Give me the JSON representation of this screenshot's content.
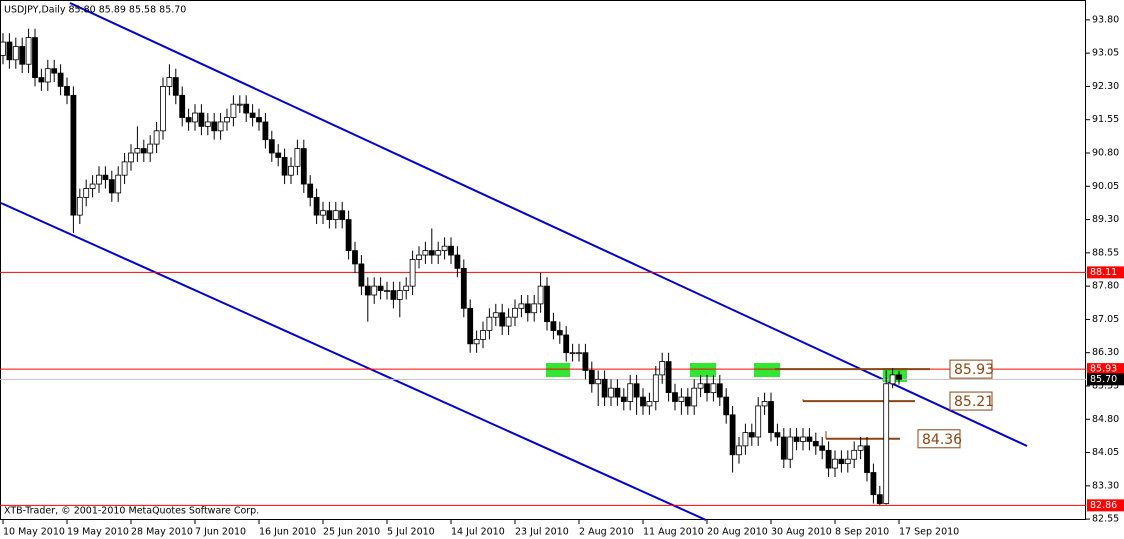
{
  "chart_data": {
    "type": "candlestick",
    "title": "USDJPY,Daily  85.80 85.89 85.58 85.70",
    "footer": "XTB-Trader, © 2001-2010 MetaQuotes Software Corp.",
    "categories": [
      "10 May 2010",
      null,
      null,
      null,
      null,
      null,
      null,
      null,
      null,
      null,
      "19 May 2010",
      null,
      null,
      null,
      null,
      null,
      null,
      null,
      null,
      null,
      "28 May 2010",
      null,
      null,
      null,
      null,
      null,
      null,
      null,
      null,
      null,
      "7 Jun 2010",
      null,
      null,
      null,
      null,
      null,
      null,
      null,
      null,
      null,
      "16 Jun 2010",
      null,
      null,
      null,
      null,
      null,
      null,
      null,
      null,
      null,
      "25 Jun 2010",
      null,
      null,
      null,
      null,
      null,
      null,
      null,
      null,
      null,
      "5 Jul 2010",
      null,
      null,
      null,
      null,
      null,
      null,
      null,
      null,
      null,
      "14 Jul 2010",
      null,
      null,
      null,
      null,
      null,
      null,
      null,
      null,
      null,
      "23 Jul 2010",
      null,
      null,
      null,
      null,
      null,
      null,
      null,
      null,
      null,
      "2 Aug 2010",
      null,
      null,
      null,
      null,
      null,
      null,
      null,
      null,
      null,
      "11 Aug 2010",
      null,
      null,
      null,
      null,
      null,
      null,
      null,
      null,
      null,
      "20 Aug 2010",
      null,
      null,
      null,
      null,
      null,
      null,
      null,
      null,
      null,
      "30 Aug 2010",
      null,
      null,
      null,
      null,
      null,
      null,
      null,
      null,
      null,
      "8 Sep 2010",
      null,
      null,
      null,
      null,
      null,
      null,
      null,
      null,
      null,
      "17 Sep 2010"
    ],
    "open": [
      93.0,
      93.3,
      92.9,
      93.2,
      92.8,
      93.4,
      92.5,
      92.4,
      92.7,
      92.6,
      92.3,
      92.1,
      89.4,
      89.8,
      90.0,
      90.1,
      90.3,
      90.2,
      89.9,
      90.3,
      90.6,
      90.8,
      90.9,
      90.8,
      91.0,
      91.3,
      92.3,
      92.5,
      92.1,
      91.6,
      91.5,
      91.7,
      91.4,
      91.5,
      91.3,
      91.5,
      91.6,
      91.9,
      91.9,
      91.7,
      91.6,
      91.5,
      91.1,
      90.8,
      90.7,
      90.3,
      90.5,
      90.9,
      90.1,
      89.8,
      89.4,
      89.5,
      89.3,
      89.5,
      89.3,
      88.6,
      88.3,
      87.8,
      87.6,
      87.8,
      87.7,
      87.7,
      87.5,
      87.7,
      87.8,
      88.4,
      88.5,
      88.6,
      88.5,
      88.6,
      88.7,
      88.5,
      88.2,
      87.3,
      86.5,
      86.6,
      86.8,
      87.1,
      87.2,
      86.9,
      87.1,
      87.3,
      87.4,
      87.2,
      87.4,
      87.8,
      87.0,
      86.8,
      86.7,
      86.3,
      86.3,
      86.3,
      85.9,
      85.6,
      85.7,
      85.3,
      85.5,
      85.3,
      85.2,
      85.6,
      85.3,
      85.1,
      85.2,
      85.8,
      86.1,
      85.4,
      85.2,
      85.3,
      85.1,
      85.5,
      85.6,
      85.4,
      85.6,
      85.3,
      84.9,
      84.0,
      84.2,
      84.5,
      84.4,
      85.1,
      85.2,
      84.5,
      84.4,
      83.9,
      84.4,
      84.3,
      84.4,
      84.3,
      84.2,
      84.1,
      83.7,
      83.9,
      83.8,
      83.9,
      84.1,
      84.2,
      83.6,
      83.1,
      82.9,
      85.6,
      85.8
    ],
    "high": [
      93.5,
      93.5,
      93.4,
      93.4,
      93.6,
      93.6,
      92.7,
      92.9,
      92.9,
      92.8,
      92.5,
      92.3,
      90.0,
      90.2,
      90.3,
      90.5,
      90.5,
      90.4,
      90.5,
      90.8,
      91.0,
      91.4,
      91.1,
      91.2,
      91.5,
      92.5,
      92.8,
      92.7,
      92.3,
      91.8,
      91.9,
      91.9,
      91.7,
      91.7,
      91.7,
      91.8,
      92.1,
      92.1,
      92.1,
      91.9,
      91.8,
      91.7,
      91.3,
      91.0,
      90.9,
      90.7,
      91.1,
      91.1,
      90.3,
      90.0,
      89.7,
      89.7,
      89.7,
      89.7,
      89.5,
      88.8,
      88.5,
      88.0,
      88.0,
      88.0,
      87.9,
      87.9,
      87.9,
      88.0,
      88.6,
      88.7,
      88.8,
      89.1,
      88.8,
      88.9,
      88.9,
      88.7,
      88.4,
      87.5,
      86.8,
      87.0,
      87.3,
      87.4,
      87.4,
      87.3,
      87.5,
      87.6,
      87.6,
      87.6,
      88.1,
      88.0,
      87.2,
      87.0,
      86.9,
      86.5,
      86.5,
      86.5,
      86.1,
      85.9,
      85.9,
      85.7,
      85.7,
      85.5,
      85.8,
      85.8,
      85.5,
      85.4,
      86.0,
      86.3,
      86.3,
      85.6,
      85.5,
      85.5,
      85.7,
      85.8,
      85.8,
      85.8,
      85.8,
      85.5,
      85.1,
      84.4,
      84.7,
      84.7,
      85.3,
      85.4,
      85.4,
      84.7,
      84.6,
      84.6,
      84.6,
      84.6,
      84.6,
      84.5,
      84.4,
      84.3,
      84.1,
      84.1,
      84.1,
      84.3,
      84.4,
      84.4,
      83.8,
      83.3,
      85.9,
      85.95,
      85.89
    ],
    "low": [
      92.8,
      92.7,
      92.7,
      92.6,
      92.6,
      92.3,
      92.2,
      92.2,
      92.4,
      92.1,
      91.9,
      89.0,
      89.2,
      89.6,
      89.8,
      89.9,
      90.0,
      89.7,
      89.7,
      90.1,
      90.4,
      90.6,
      90.6,
      90.6,
      90.8,
      91.1,
      92.1,
      91.9,
      91.4,
      91.3,
      91.3,
      91.2,
      91.2,
      91.1,
      91.1,
      91.3,
      91.4,
      91.7,
      91.5,
      91.4,
      91.3,
      90.9,
      90.6,
      90.5,
      90.1,
      90.1,
      90.3,
      89.9,
      89.6,
      89.2,
      89.2,
      89.1,
      89.1,
      89.1,
      88.4,
      88.1,
      87.6,
      87.0,
      87.4,
      87.5,
      87.5,
      87.3,
      87.1,
      87.5,
      87.6,
      88.2,
      88.3,
      88.3,
      88.3,
      88.4,
      88.3,
      88.0,
      87.1,
      86.3,
      86.3,
      86.4,
      86.6,
      86.9,
      86.7,
      86.7,
      86.9,
      87.1,
      87.0,
      87.0,
      87.2,
      86.8,
      86.6,
      86.5,
      86.1,
      86.1,
      86.1,
      85.7,
      85.4,
      85.1,
      85.1,
      85.1,
      85.1,
      85.0,
      85.0,
      84.9,
      84.9,
      84.9,
      85.0,
      85.6,
      85.2,
      85.0,
      84.9,
      84.9,
      84.9,
      85.3,
      85.2,
      85.2,
      85.1,
      84.7,
      83.6,
      83.8,
      84.0,
      84.2,
      84.2,
      84.9,
      84.3,
      84.2,
      83.7,
      83.7,
      84.1,
      84.1,
      84.1,
      84.0,
      83.9,
      83.5,
      83.5,
      83.6,
      83.6,
      83.7,
      83.9,
      83.4,
      82.9,
      82.86,
      82.88,
      85.5,
      85.58
    ],
    "close": [
      93.3,
      92.9,
      93.2,
      92.8,
      93.4,
      92.5,
      92.4,
      92.7,
      92.6,
      92.3,
      92.1,
      89.4,
      89.8,
      90.0,
      90.1,
      90.3,
      90.2,
      89.9,
      90.3,
      90.6,
      90.8,
      90.9,
      90.8,
      91.0,
      91.3,
      92.3,
      92.5,
      92.1,
      91.6,
      91.5,
      91.7,
      91.4,
      91.5,
      91.3,
      91.5,
      91.6,
      91.9,
      91.9,
      91.7,
      91.6,
      91.5,
      91.1,
      90.8,
      90.7,
      90.3,
      90.5,
      90.9,
      90.1,
      89.8,
      89.4,
      89.5,
      89.3,
      89.5,
      89.3,
      88.6,
      88.3,
      87.8,
      87.6,
      87.8,
      87.7,
      87.7,
      87.5,
      87.7,
      87.8,
      88.4,
      88.5,
      88.6,
      88.5,
      88.6,
      88.7,
      88.5,
      88.2,
      87.3,
      86.5,
      86.6,
      86.8,
      87.1,
      87.2,
      86.9,
      87.1,
      87.3,
      87.4,
      87.2,
      87.4,
      87.8,
      87.0,
      86.8,
      86.7,
      86.3,
      86.3,
      86.3,
      85.9,
      85.6,
      85.7,
      85.3,
      85.5,
      85.3,
      85.2,
      85.6,
      85.3,
      85.1,
      85.2,
      85.8,
      86.1,
      85.4,
      85.2,
      85.3,
      85.1,
      85.5,
      85.6,
      85.4,
      85.6,
      85.3,
      84.9,
      84.0,
      84.2,
      84.5,
      84.4,
      85.1,
      85.2,
      84.5,
      84.4,
      83.9,
      84.4,
      84.3,
      84.4,
      84.3,
      84.2,
      84.1,
      83.7,
      83.9,
      83.8,
      83.9,
      84.1,
      84.2,
      83.6,
      83.1,
      82.9,
      85.6,
      85.8,
      85.7
    ],
    "ylim": [
      82.53,
      94.18
    ],
    "yticks": [
      {
        "value": 93.8,
        "label": "93.80"
      },
      93.05,
      {
        "value": 92.3,
        "label": "92.30"
      },
      91.55,
      {
        "value": 90.8,
        "label": "90.80"
      },
      90.05,
      {
        "value": 89.3,
        "label": "89.30"
      },
      88.55,
      {
        "value": 87.8,
        "label": "87.80"
      },
      87.05,
      {
        "value": 86.3,
        "label": "86.30"
      },
      85.55,
      {
        "value": 84.8,
        "label": "84.80"
      },
      84.05,
      {
        "value": 83.3,
        "label": "83.30"
      },
      82.55
    ],
    "grid": false,
    "levels": [
      {
        "value": 88.11,
        "color": "#ff0000"
      },
      {
        "value": 85.93,
        "color": "#ff0000"
      },
      {
        "value": 82.86,
        "color": "#ff0000"
      },
      {
        "value": 85.7,
        "label": "85.70",
        "color": "#c0c0c0"
      }
    ],
    "annotations": [
      {
        "value": 85.93,
        "color": "#8b4513"
      },
      {
        "value": 85.21,
        "color": "#8b4513"
      },
      {
        "value": 84.36,
        "color": "#8b4513"
      }
    ]
  }
}
